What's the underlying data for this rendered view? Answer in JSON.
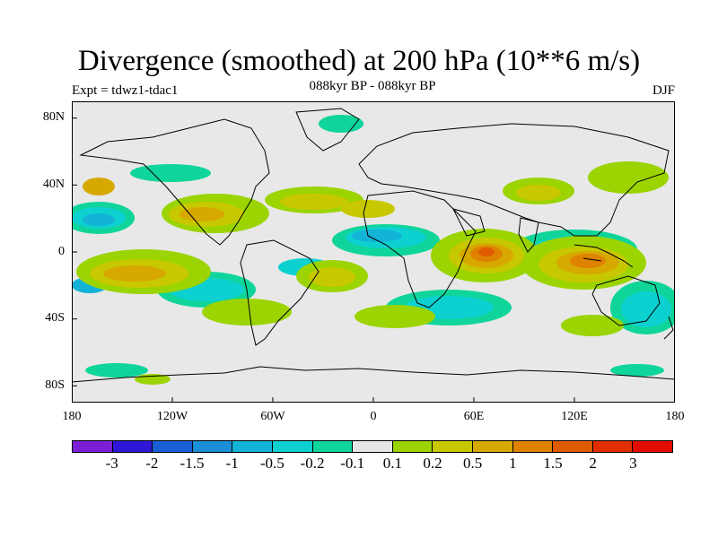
{
  "title": "Divergence (smoothed) at 200 hPa (10**6 m/s)",
  "subtitle": "088kyr BP - 088kyr BP",
  "experiment": "Expt = tdwz1-tdac1",
  "season": "DJF",
  "map": {
    "projection": "cylindrical equidistant",
    "variable": "200 hPa divergence (smoothed)",
    "background_color": "#e8e8e8",
    "lat_labels": [
      "80N",
      "40N",
      "0",
      "40S",
      "80S"
    ],
    "lon_labels": [
      "180",
      "120W",
      "60W",
      "0",
      "60E",
      "120E",
      "180"
    ]
  },
  "colorbar": {
    "colors": [
      "#7a1fd6",
      "#2e17d6",
      "#1a5fd6",
      "#1a8ed6",
      "#12b3d6",
      "#0dd0d0",
      "#0fd59a",
      "#e6e6e6",
      "#9bd400",
      "#c8c800",
      "#d6a800",
      "#de8200",
      "#e05a00",
      "#e32e00",
      "#e30c00"
    ],
    "labels": [
      "-3",
      "-2",
      "-1.5",
      "-1",
      "-0.5",
      "-0.2",
      "-0.1",
      "0.1",
      "0.2",
      "0.5",
      "1",
      "1.5",
      "2",
      "3"
    ]
  }
}
